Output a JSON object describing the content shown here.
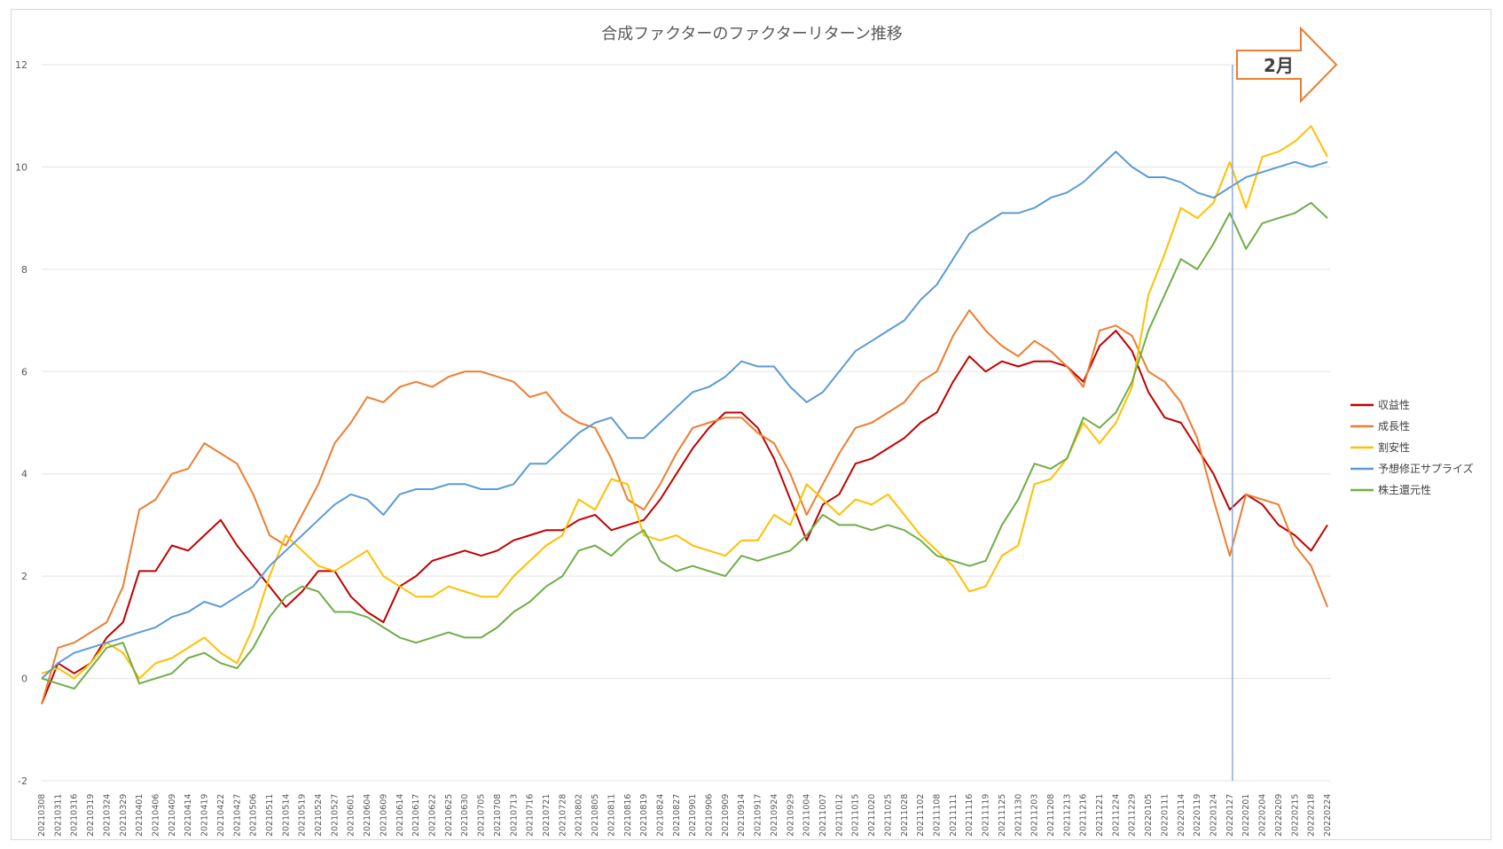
{
  "chart_data": {
    "type": "line",
    "title": "合成ファクターのファクターリターン推移",
    "ylim": [
      -2,
      12
    ],
    "yticks": [
      -2,
      0,
      2,
      4,
      6,
      8,
      10,
      12
    ],
    "grid": true,
    "legend_position": "right",
    "xtick_labels": [
      "20210308",
      "20210311",
      "20210316",
      "20210319",
      "20210324",
      "20210329",
      "20210401",
      "20210406",
      "20210409",
      "20210414",
      "20210419",
      "20210422",
      "20210427",
      "20210506",
      "20210511",
      "20210514",
      "20210519",
      "20210524",
      "20210527",
      "20210601",
      "20210604",
      "20210609",
      "20210614",
      "20210617",
      "20210622",
      "20210625",
      "20210630",
      "20210705",
      "20210708",
      "20210713",
      "20210716",
      "20210721",
      "20210728",
      "20210802",
      "20210805",
      "20210811",
      "20210816",
      "20210819",
      "20210824",
      "20210827",
      "20210901",
      "20210906",
      "20210909",
      "20210914",
      "20210917",
      "20210924",
      "20210929",
      "20211004",
      "20211007",
      "20211012",
      "20211015",
      "20211020",
      "20211025",
      "20211028",
      "20211102",
      "20211108",
      "20211111",
      "20211116",
      "20211119",
      "20211125",
      "20211130",
      "20211203",
      "20211208",
      "20211213",
      "20211216",
      "20211221",
      "20211224",
      "20211229",
      "20220105",
      "20220111",
      "20220114",
      "20220119",
      "20220124",
      "20220127",
      "20220201",
      "20220204",
      "20220209",
      "20220215",
      "20220218",
      "20220224"
    ],
    "annotation": {
      "label": "2月",
      "marker_at": "20220127"
    },
    "series": [
      {
        "name": "収益性",
        "color": "#c00000",
        "values": [
          -0.5,
          0.3,
          0.1,
          0.3,
          0.8,
          1.1,
          2.1,
          2.1,
          2.6,
          2.5,
          2.8,
          3.1,
          2.6,
          2.2,
          1.8,
          1.4,
          1.7,
          2.1,
          2.1,
          1.6,
          1.3,
          1.1,
          1.8,
          2.0,
          2.3,
          2.4,
          2.5,
          2.4,
          2.5,
          2.7,
          2.8,
          2.9,
          2.9,
          3.1,
          3.2,
          2.9,
          3.0,
          3.1,
          3.5,
          4.0,
          4.5,
          4.9,
          5.2,
          5.2,
          4.9,
          4.3,
          3.5,
          2.7,
          3.4,
          3.6,
          4.2,
          4.3,
          4.5,
          4.7,
          5.0,
          5.2,
          5.8,
          6.3,
          6.0,
          6.2,
          6.1,
          6.2,
          6.2,
          6.1,
          5.8,
          6.5,
          6.8,
          6.4,
          5.6,
          5.1,
          5.0,
          4.5,
          4.0,
          3.3,
          3.6,
          3.4,
          3.0,
          2.8,
          2.5,
          3.0
        ]
      },
      {
        "name": "成長性",
        "color": "#ed7d31",
        "values": [
          -0.5,
          0.6,
          0.7,
          0.9,
          1.1,
          1.8,
          3.3,
          3.5,
          4.0,
          4.1,
          4.6,
          4.4,
          4.2,
          3.6,
          2.8,
          2.6,
          3.2,
          3.8,
          4.6,
          5.0,
          5.5,
          5.4,
          5.7,
          5.8,
          5.7,
          5.9,
          6.0,
          6.0,
          5.9,
          5.8,
          5.5,
          5.6,
          5.2,
          5.0,
          4.9,
          4.3,
          3.5,
          3.3,
          3.8,
          4.4,
          4.9,
          5.0,
          5.1,
          5.1,
          4.8,
          4.6,
          4.0,
          3.2,
          3.8,
          4.4,
          4.9,
          5.0,
          5.2,
          5.4,
          5.8,
          6.0,
          6.7,
          7.2,
          6.8,
          6.5,
          6.3,
          6.6,
          6.4,
          6.1,
          5.7,
          6.8,
          6.9,
          6.7,
          6.0,
          5.8,
          5.4,
          4.7,
          3.5,
          2.4,
          3.6,
          3.5,
          3.4,
          2.6,
          2.2,
          1.4
        ]
      },
      {
        "name": "割安性",
        "color": "#ffc000",
        "values": [
          0.1,
          0.2,
          0.0,
          0.3,
          0.7,
          0.5,
          0.0,
          0.3,
          0.4,
          0.6,
          0.8,
          0.5,
          0.3,
          1.0,
          2.0,
          2.8,
          2.5,
          2.2,
          2.1,
          2.3,
          2.5,
          2.0,
          1.8,
          1.6,
          1.6,
          1.8,
          1.7,
          1.6,
          1.6,
          2.0,
          2.3,
          2.6,
          2.8,
          3.5,
          3.3,
          3.9,
          3.8,
          2.8,
          2.7,
          2.8,
          2.6,
          2.5,
          2.4,
          2.7,
          2.7,
          3.2,
          3.0,
          3.8,
          3.5,
          3.2,
          3.5,
          3.4,
          3.6,
          3.2,
          2.8,
          2.5,
          2.2,
          1.7,
          1.8,
          2.4,
          2.6,
          3.8,
          3.9,
          4.3,
          5.0,
          4.6,
          5.0,
          5.7,
          7.5,
          8.3,
          9.2,
          9.0,
          9.3,
          10.1,
          9.2,
          10.2,
          10.3,
          10.5,
          10.8,
          10.2
        ]
      },
      {
        "name": "予想修正サプライズ",
        "color": "#5b9bd5",
        "values": [
          0.0,
          0.3,
          0.5,
          0.6,
          0.7,
          0.8,
          0.9,
          1.0,
          1.2,
          1.3,
          1.5,
          1.4,
          1.6,
          1.8,
          2.2,
          2.5,
          2.8,
          3.1,
          3.4,
          3.6,
          3.5,
          3.2,
          3.6,
          3.7,
          3.7,
          3.8,
          3.8,
          3.7,
          3.7,
          3.8,
          4.2,
          4.2,
          4.5,
          4.8,
          5.0,
          5.1,
          4.7,
          4.7,
          5.0,
          5.3,
          5.6,
          5.7,
          5.9,
          6.2,
          6.1,
          6.1,
          5.7,
          5.4,
          5.6,
          6.0,
          6.4,
          6.6,
          6.8,
          7.0,
          7.4,
          7.7,
          8.2,
          8.7,
          8.9,
          9.1,
          9.1,
          9.2,
          9.4,
          9.5,
          9.7,
          10.0,
          10.3,
          10.0,
          9.8,
          9.8,
          9.7,
          9.5,
          9.4,
          9.6,
          9.8,
          9.9,
          10.0,
          10.1,
          10.0,
          10.1
        ]
      },
      {
        "name": "株主還元性",
        "color": "#70ad47",
        "values": [
          0.0,
          -0.1,
          -0.2,
          0.2,
          0.6,
          0.7,
          -0.1,
          0.0,
          0.1,
          0.4,
          0.5,
          0.3,
          0.2,
          0.6,
          1.2,
          1.6,
          1.8,
          1.7,
          1.3,
          1.3,
          1.2,
          1.0,
          0.8,
          0.7,
          0.8,
          0.9,
          0.8,
          0.8,
          1.0,
          1.3,
          1.5,
          1.8,
          2.0,
          2.5,
          2.6,
          2.4,
          2.7,
          2.9,
          2.3,
          2.1,
          2.2,
          2.1,
          2.0,
          2.4,
          2.3,
          2.4,
          2.5,
          2.8,
          3.2,
          3.0,
          3.0,
          2.9,
          3.0,
          2.9,
          2.7,
          2.4,
          2.3,
          2.2,
          2.3,
          3.0,
          3.5,
          4.2,
          4.1,
          4.3,
          5.1,
          4.9,
          5.2,
          5.8,
          6.8,
          7.5,
          8.2,
          8.0,
          8.5,
          9.1,
          8.4,
          8.9,
          9.0,
          9.1,
          9.3,
          9.0
        ]
      }
    ]
  }
}
